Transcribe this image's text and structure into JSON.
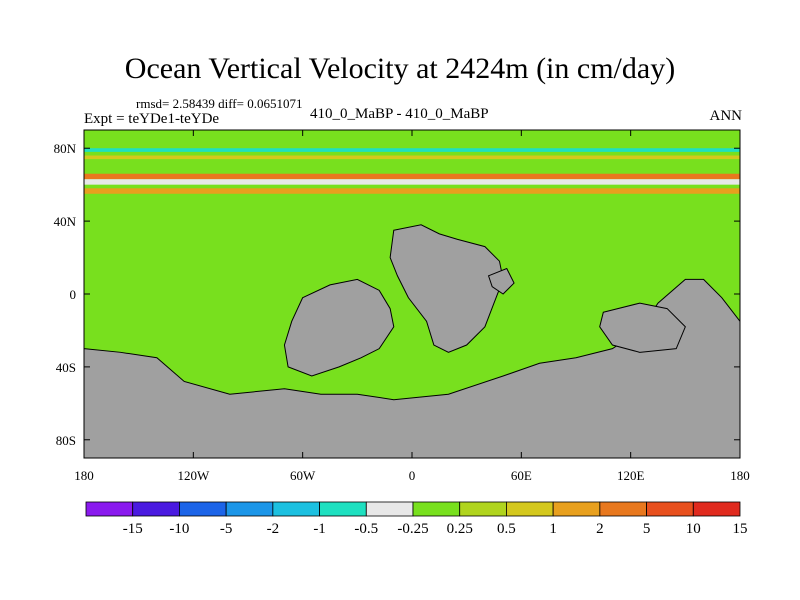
{
  "chart_data": {
    "type": "heatmap",
    "title": "Ocean Vertical Velocity at 2424m (in cm/day)",
    "stats_text": "rmsd= 2.58439 diff= 0.0651071",
    "experiment_label": "Expt = teYDe1-teYDe",
    "case_label": "410_0_MaBP - 410_0_MaBP",
    "season_label": "ANN",
    "x_range": [
      -180,
      180
    ],
    "y_range": [
      -90,
      90
    ],
    "x_ticks": [
      {
        "value": -180,
        "label": "180"
      },
      {
        "value": -120,
        "label": "120W"
      },
      {
        "value": -60,
        "label": "60W"
      },
      {
        "value": 0,
        "label": "0"
      },
      {
        "value": 60,
        "label": "60E"
      },
      {
        "value": 120,
        "label": "120E"
      },
      {
        "value": 180,
        "label": "180"
      }
    ],
    "y_ticks": [
      {
        "value": 80,
        "label": "80N"
      },
      {
        "value": 40,
        "label": "40N"
      },
      {
        "value": 0,
        "label": "0"
      },
      {
        "value": -40,
        "label": "40S"
      },
      {
        "value": -80,
        "label": "80S"
      }
    ],
    "legend": {
      "colors": [
        "#8a1aee",
        "#4a1ae0",
        "#1c64e8",
        "#1c96e8",
        "#1cc0e0",
        "#1ee0c0",
        "#e8e8e8",
        "#78e01e",
        "#b0d41e",
        "#d4c81e",
        "#e8a01e",
        "#e8781e",
        "#e8501e",
        "#e02a1e"
      ],
      "labels": [
        "-15",
        "-10",
        "-5",
        "-2",
        "-1",
        "-0.5",
        "-0.25",
        "0.25",
        "0.5",
        "1",
        "2",
        "5",
        "10",
        "15"
      ]
    },
    "land_regions": [
      {
        "name": "antarctica",
        "points": [
          [
            -180,
            -30
          ],
          [
            -160,
            -32
          ],
          [
            -140,
            -35
          ],
          [
            -125,
            -48
          ],
          [
            -100,
            -55
          ],
          [
            -70,
            -52
          ],
          [
            -50,
            -55
          ],
          [
            -30,
            -55
          ],
          [
            -10,
            -58
          ],
          [
            20,
            -55
          ],
          [
            50,
            -45
          ],
          [
            70,
            -38
          ],
          [
            90,
            -35
          ],
          [
            110,
            -30
          ],
          [
            125,
            -20
          ],
          [
            135,
            -5
          ],
          [
            150,
            8
          ],
          [
            160,
            8
          ],
          [
            170,
            -2
          ],
          [
            180,
            -15
          ],
          [
            180,
            -90
          ],
          [
            -180,
            -90
          ]
        ]
      },
      {
        "name": "south-america",
        "points": [
          [
            -60,
            -2
          ],
          [
            -45,
            5
          ],
          [
            -30,
            8
          ],
          [
            -18,
            2
          ],
          [
            -12,
            -8
          ],
          [
            -10,
            -18
          ],
          [
            -18,
            -30
          ],
          [
            -28,
            -35
          ],
          [
            -40,
            -40
          ],
          [
            -55,
            -45
          ],
          [
            -68,
            -40
          ],
          [
            -70,
            -28
          ],
          [
            -66,
            -15
          ]
        ]
      },
      {
        "name": "africa",
        "points": [
          [
            -10,
            35
          ],
          [
            5,
            38
          ],
          [
            15,
            33
          ],
          [
            25,
            30
          ],
          [
            40,
            26
          ],
          [
            48,
            18
          ],
          [
            50,
            8
          ],
          [
            45,
            -5
          ],
          [
            40,
            -18
          ],
          [
            30,
            -28
          ],
          [
            20,
            -32
          ],
          [
            12,
            -28
          ],
          [
            8,
            -15
          ],
          [
            -2,
            -2
          ],
          [
            -8,
            10
          ],
          [
            -12,
            20
          ]
        ]
      },
      {
        "name": "arabia",
        "points": [
          [
            42,
            10
          ],
          [
            52,
            14
          ],
          [
            56,
            6
          ],
          [
            50,
            0
          ],
          [
            44,
            4
          ]
        ]
      },
      {
        "name": "australia",
        "points": [
          [
            105,
            -10
          ],
          [
            125,
            -5
          ],
          [
            140,
            -8
          ],
          [
            150,
            -18
          ],
          [
            145,
            -30
          ],
          [
            125,
            -32
          ],
          [
            110,
            -28
          ],
          [
            103,
            -18
          ]
        ]
      }
    ],
    "anomaly_bands": [
      {
        "lat_min": 78,
        "lat_max": 80,
        "value": -1
      },
      {
        "lat_min": 74,
        "lat_max": 76,
        "value": 0.5
      },
      {
        "lat_min": 63,
        "lat_max": 66,
        "value": 2
      },
      {
        "lat_min": 60,
        "lat_max": 63,
        "value": -0.5
      },
      {
        "lat_min": 55,
        "lat_max": 58,
        "value": 1
      }
    ]
  }
}
